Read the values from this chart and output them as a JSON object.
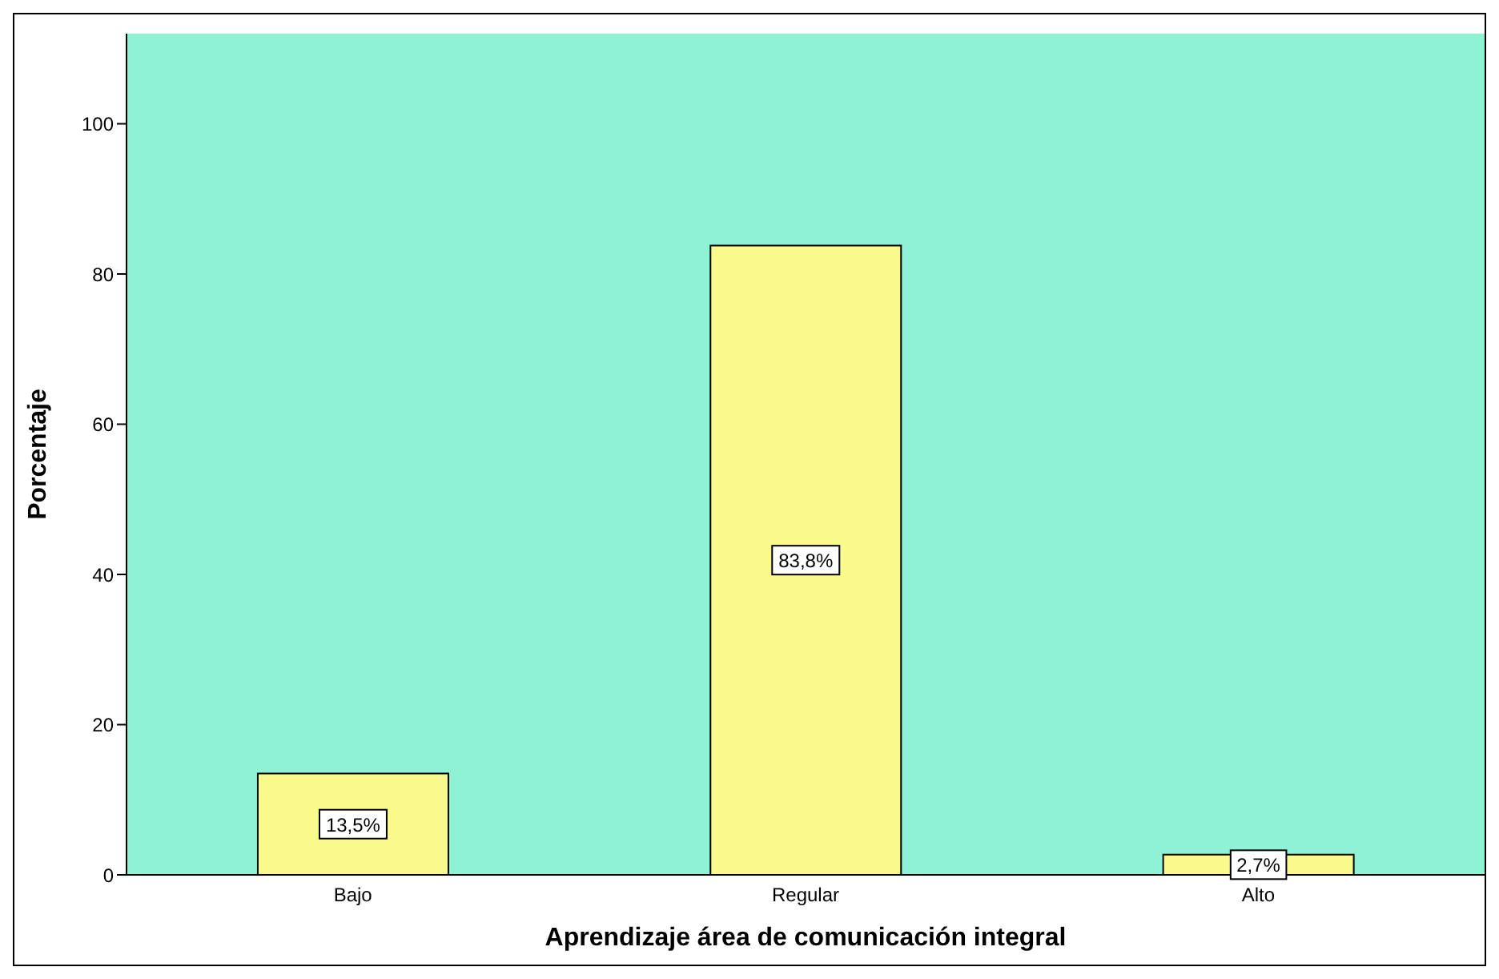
{
  "chart_data": {
    "type": "bar",
    "xlabel": "Aprendizaje área de comunicación integral",
    "ylabel": "Porcentaje",
    "categories": [
      "Bajo",
      "Regular",
      "Alto"
    ],
    "values": [
      13.5,
      83.8,
      2.7
    ],
    "value_labels": [
      "13,5%",
      "83,8%",
      "2,7%"
    ],
    "color": "#fafa8c",
    "ylim": [
      0,
      112
    ],
    "yticks": [
      0,
      20,
      40,
      60,
      80,
      100
    ],
    "grid": false
  }
}
